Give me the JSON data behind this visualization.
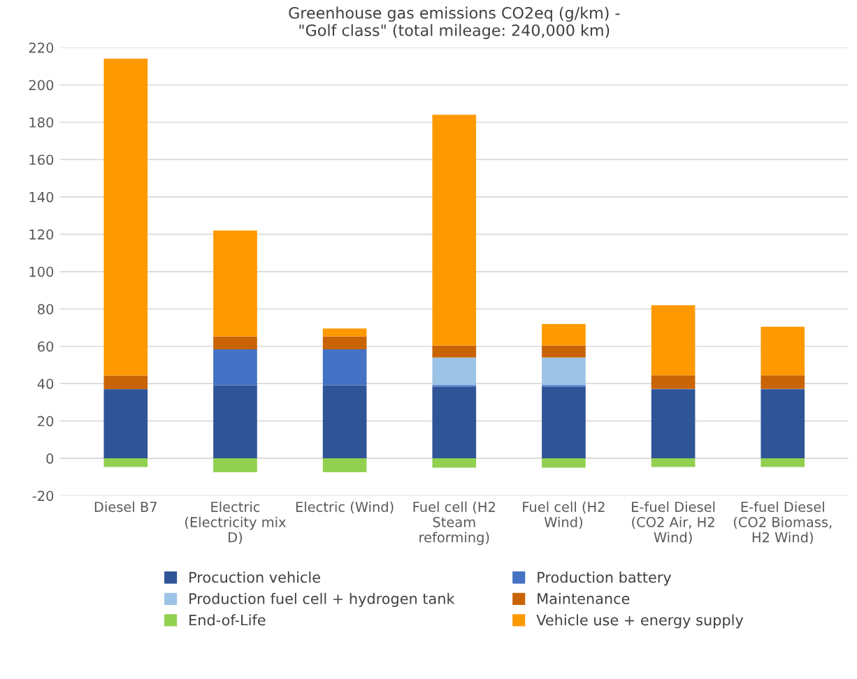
{
  "chart_data": {
    "type": "bar",
    "stacked": true,
    "title": "Greenhouse gas emissions CO2eq (g/km) -\n\"Golf class\" (total mileage: 240,000 km)",
    "categories": [
      "Diesel B7",
      "Electric\n(Electricity mix\nD)",
      "Electric (Wind)",
      "Fuel cell (H2\nSteam\nreforming)",
      "Fuel cell (H2\nWind)",
      "E-fuel Diesel\n(CO2 Air, H2\nWind)",
      "E-fuel Diesel\n(CO2 Biomass,\nH2 Wind)"
    ],
    "series": [
      {
        "name": "Procuction vehicle",
        "color": "#2f5597",
        "values": [
          36.7,
          39.1,
          39.1,
          38.4,
          38.4,
          36.7,
          36.7
        ]
      },
      {
        "name": "Production battery",
        "color": "#4472c4",
        "values": [
          0.4,
          19.3,
          19.3,
          0.8,
          0.8,
          0.5,
          0.5
        ]
      },
      {
        "name": "Production fuel cell + hydrogen tank",
        "color": "#9dc3e6",
        "values": [
          0,
          0,
          0,
          14.8,
          14.8,
          0,
          0
        ]
      },
      {
        "name": "Maintenance",
        "color": "#c96405",
        "values": [
          7.3,
          6.9,
          6.9,
          6.5,
          6.5,
          7.3,
          7.3
        ]
      },
      {
        "name": "End-of-Life",
        "color": "#92d050",
        "values": [
          -4.6,
          -7.4,
          -7.4,
          -5.0,
          -5.0,
          -4.6,
          -4.6
        ]
      },
      {
        "name": "Vehicle use + energy supply",
        "color": "#ff9900",
        "values": [
          169.6,
          56.7,
          4.2,
          123.5,
          11.5,
          37.5,
          26.0
        ]
      }
    ],
    "ylim": [
      -20,
      220
    ],
    "yticks": [
      -20,
      0,
      20,
      40,
      60,
      80,
      100,
      120,
      140,
      160,
      180,
      200,
      220
    ],
    "grid": "y",
    "legend": "bottom"
  }
}
